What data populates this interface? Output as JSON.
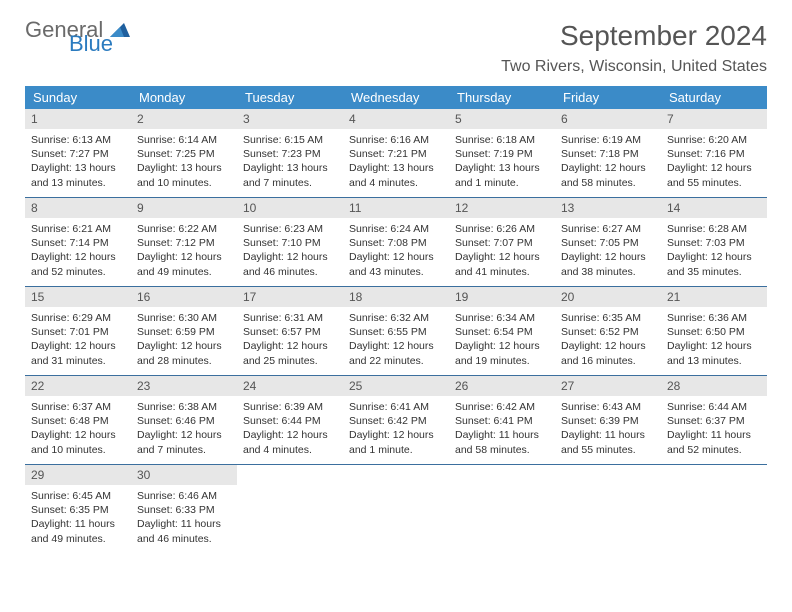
{
  "colors": {
    "header_bg": "#3b8bc8",
    "header_text": "#ffffff",
    "daynum_bg": "#e7e7e7",
    "daynum_text": "#555555",
    "body_text": "#333333",
    "title_text": "#555555",
    "row_divider": "#3b6f9e",
    "logo_gray": "#6a6a6a",
    "logo_blue": "#2b7bbf"
  },
  "logo": {
    "part1": "General",
    "part2": "Blue"
  },
  "title": "September 2024",
  "location": "Two Rivers, Wisconsin, United States",
  "day_headers": [
    "Sunday",
    "Monday",
    "Tuesday",
    "Wednesday",
    "Thursday",
    "Friday",
    "Saturday"
  ],
  "weeks": [
    [
      {
        "n": "1",
        "sr": "Sunrise: 6:13 AM",
        "ss": "Sunset: 7:27 PM",
        "d1": "Daylight: 13 hours",
        "d2": "and 13 minutes."
      },
      {
        "n": "2",
        "sr": "Sunrise: 6:14 AM",
        "ss": "Sunset: 7:25 PM",
        "d1": "Daylight: 13 hours",
        "d2": "and 10 minutes."
      },
      {
        "n": "3",
        "sr": "Sunrise: 6:15 AM",
        "ss": "Sunset: 7:23 PM",
        "d1": "Daylight: 13 hours",
        "d2": "and 7 minutes."
      },
      {
        "n": "4",
        "sr": "Sunrise: 6:16 AM",
        "ss": "Sunset: 7:21 PM",
        "d1": "Daylight: 13 hours",
        "d2": "and 4 minutes."
      },
      {
        "n": "5",
        "sr": "Sunrise: 6:18 AM",
        "ss": "Sunset: 7:19 PM",
        "d1": "Daylight: 13 hours",
        "d2": "and 1 minute."
      },
      {
        "n": "6",
        "sr": "Sunrise: 6:19 AM",
        "ss": "Sunset: 7:18 PM",
        "d1": "Daylight: 12 hours",
        "d2": "and 58 minutes."
      },
      {
        "n": "7",
        "sr": "Sunrise: 6:20 AM",
        "ss": "Sunset: 7:16 PM",
        "d1": "Daylight: 12 hours",
        "d2": "and 55 minutes."
      }
    ],
    [
      {
        "n": "8",
        "sr": "Sunrise: 6:21 AM",
        "ss": "Sunset: 7:14 PM",
        "d1": "Daylight: 12 hours",
        "d2": "and 52 minutes."
      },
      {
        "n": "9",
        "sr": "Sunrise: 6:22 AM",
        "ss": "Sunset: 7:12 PM",
        "d1": "Daylight: 12 hours",
        "d2": "and 49 minutes."
      },
      {
        "n": "10",
        "sr": "Sunrise: 6:23 AM",
        "ss": "Sunset: 7:10 PM",
        "d1": "Daylight: 12 hours",
        "d2": "and 46 minutes."
      },
      {
        "n": "11",
        "sr": "Sunrise: 6:24 AM",
        "ss": "Sunset: 7:08 PM",
        "d1": "Daylight: 12 hours",
        "d2": "and 43 minutes."
      },
      {
        "n": "12",
        "sr": "Sunrise: 6:26 AM",
        "ss": "Sunset: 7:07 PM",
        "d1": "Daylight: 12 hours",
        "d2": "and 41 minutes."
      },
      {
        "n": "13",
        "sr": "Sunrise: 6:27 AM",
        "ss": "Sunset: 7:05 PM",
        "d1": "Daylight: 12 hours",
        "d2": "and 38 minutes."
      },
      {
        "n": "14",
        "sr": "Sunrise: 6:28 AM",
        "ss": "Sunset: 7:03 PM",
        "d1": "Daylight: 12 hours",
        "d2": "and 35 minutes."
      }
    ],
    [
      {
        "n": "15",
        "sr": "Sunrise: 6:29 AM",
        "ss": "Sunset: 7:01 PM",
        "d1": "Daylight: 12 hours",
        "d2": "and 31 minutes."
      },
      {
        "n": "16",
        "sr": "Sunrise: 6:30 AM",
        "ss": "Sunset: 6:59 PM",
        "d1": "Daylight: 12 hours",
        "d2": "and 28 minutes."
      },
      {
        "n": "17",
        "sr": "Sunrise: 6:31 AM",
        "ss": "Sunset: 6:57 PM",
        "d1": "Daylight: 12 hours",
        "d2": "and 25 minutes."
      },
      {
        "n": "18",
        "sr": "Sunrise: 6:32 AM",
        "ss": "Sunset: 6:55 PM",
        "d1": "Daylight: 12 hours",
        "d2": "and 22 minutes."
      },
      {
        "n": "19",
        "sr": "Sunrise: 6:34 AM",
        "ss": "Sunset: 6:54 PM",
        "d1": "Daylight: 12 hours",
        "d2": "and 19 minutes."
      },
      {
        "n": "20",
        "sr": "Sunrise: 6:35 AM",
        "ss": "Sunset: 6:52 PM",
        "d1": "Daylight: 12 hours",
        "d2": "and 16 minutes."
      },
      {
        "n": "21",
        "sr": "Sunrise: 6:36 AM",
        "ss": "Sunset: 6:50 PM",
        "d1": "Daylight: 12 hours",
        "d2": "and 13 minutes."
      }
    ],
    [
      {
        "n": "22",
        "sr": "Sunrise: 6:37 AM",
        "ss": "Sunset: 6:48 PM",
        "d1": "Daylight: 12 hours",
        "d2": "and 10 minutes."
      },
      {
        "n": "23",
        "sr": "Sunrise: 6:38 AM",
        "ss": "Sunset: 6:46 PM",
        "d1": "Daylight: 12 hours",
        "d2": "and 7 minutes."
      },
      {
        "n": "24",
        "sr": "Sunrise: 6:39 AM",
        "ss": "Sunset: 6:44 PM",
        "d1": "Daylight: 12 hours",
        "d2": "and 4 minutes."
      },
      {
        "n": "25",
        "sr": "Sunrise: 6:41 AM",
        "ss": "Sunset: 6:42 PM",
        "d1": "Daylight: 12 hours",
        "d2": "and 1 minute."
      },
      {
        "n": "26",
        "sr": "Sunrise: 6:42 AM",
        "ss": "Sunset: 6:41 PM",
        "d1": "Daylight: 11 hours",
        "d2": "and 58 minutes."
      },
      {
        "n": "27",
        "sr": "Sunrise: 6:43 AM",
        "ss": "Sunset: 6:39 PM",
        "d1": "Daylight: 11 hours",
        "d2": "and 55 minutes."
      },
      {
        "n": "28",
        "sr": "Sunrise: 6:44 AM",
        "ss": "Sunset: 6:37 PM",
        "d1": "Daylight: 11 hours",
        "d2": "and 52 minutes."
      }
    ],
    [
      {
        "n": "29",
        "sr": "Sunrise: 6:45 AM",
        "ss": "Sunset: 6:35 PM",
        "d1": "Daylight: 11 hours",
        "d2": "and 49 minutes."
      },
      {
        "n": "30",
        "sr": "Sunrise: 6:46 AM",
        "ss": "Sunset: 6:33 PM",
        "d1": "Daylight: 11 hours",
        "d2": "and 46 minutes."
      },
      {
        "empty": true
      },
      {
        "empty": true
      },
      {
        "empty": true
      },
      {
        "empty": true
      },
      {
        "empty": true
      }
    ]
  ]
}
